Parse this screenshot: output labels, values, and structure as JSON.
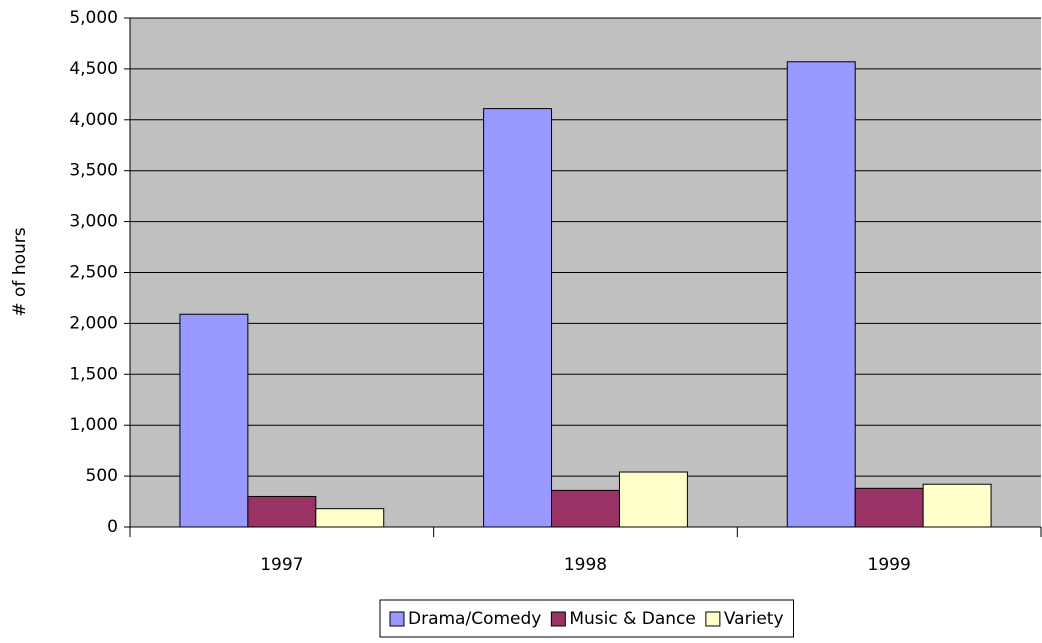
{
  "chart_data": {
    "type": "bar",
    "y_label": "# of hours",
    "categories": [
      "1997",
      "1998",
      "1999"
    ],
    "series": [
      {
        "name": "Drama/Comedy",
        "color": "#9999ff",
        "values": [
          2090,
          4110,
          4570
        ]
      },
      {
        "name": "Music & Dance",
        "color": "#993366",
        "values": [
          300,
          360,
          380
        ]
      },
      {
        "name": "Variety",
        "color": "#ffffcc",
        "values": [
          180,
          540,
          420
        ]
      }
    ],
    "ylim": [
      0,
      5000
    ],
    "yticks": [
      0,
      500,
      {
        "value": 1000,
        "label": "1,000"
      },
      {
        "value": 1500,
        "label": "1,500"
      },
      {
        "value": 2000,
        "label": "2,000"
      },
      {
        "value": 2500,
        "label": "2,500"
      },
      {
        "value": 3000,
        "label": "3,000"
      },
      {
        "value": 3500,
        "label": "3,500"
      },
      {
        "value": 4000,
        "label": "4,000"
      },
      {
        "value": 4500,
        "label": "4,500"
      },
      {
        "value": 5000,
        "label": "5,000"
      }
    ],
    "grid": true,
    "plot_background": "#c0c0c0",
    "legend": "bottom"
  }
}
